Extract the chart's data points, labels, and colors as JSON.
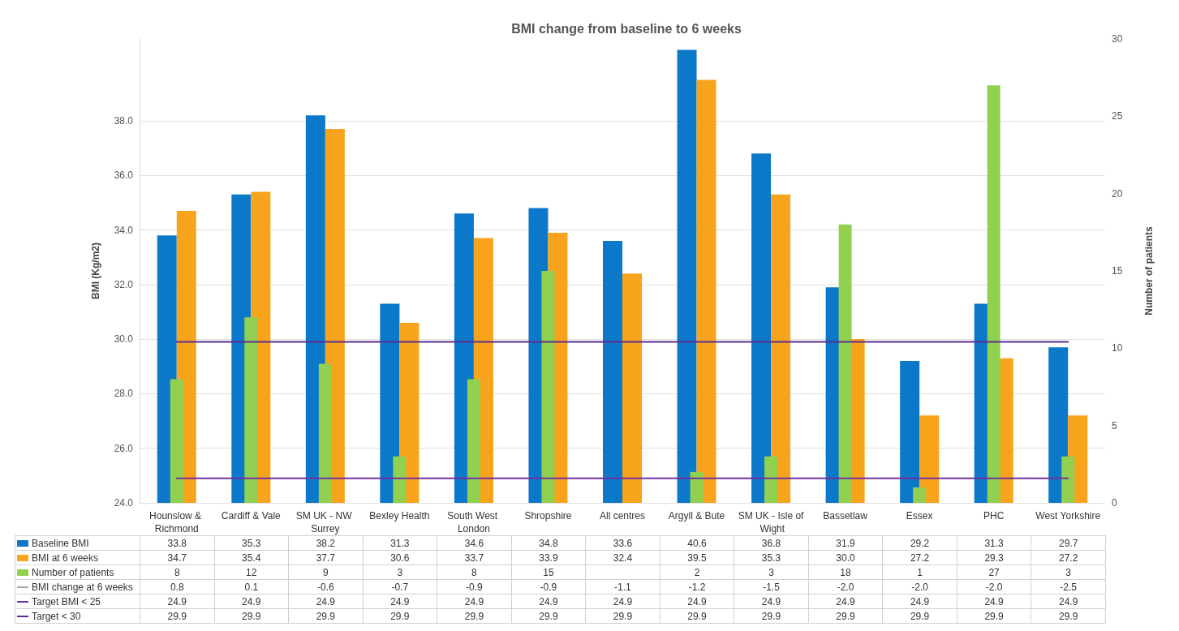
{
  "chart_data": {
    "type": "bar",
    "title": "BMI change from baseline to 6 weeks",
    "ylabel": "BMI (Kg/m2)",
    "y2label": "Number of patients",
    "categories": [
      "Hounslow & Richmond",
      "Cardiff & Vale",
      "SM UK - NW Surrey",
      "Bexley Health",
      "South West London",
      "Shropshire",
      "All centres",
      "Argyll & Bute",
      "SM UK - Isle of Wight",
      "Bassetlaw",
      "Essex",
      "PHC",
      "West Yorkshire"
    ],
    "series": [
      {
        "name": "Baseline BMI",
        "color": "#0b78c9",
        "values": [
          33.8,
          35.3,
          38.2,
          31.3,
          34.6,
          34.8,
          33.6,
          40.6,
          36.8,
          31.9,
          29.2,
          31.3,
          29.7
        ],
        "value_labels": [
          "33.8",
          "35.3",
          "38.2",
          "31.3",
          "34.6",
          "34.8",
          "33.6",
          "40.6",
          "36.8",
          "31.9",
          "29.2",
          "31.3",
          "29.7"
        ]
      },
      {
        "name": "BMI at 6 weeks",
        "color": "#f8a31c",
        "values": [
          34.7,
          35.4,
          37.7,
          30.6,
          33.7,
          33.9,
          32.4,
          39.5,
          35.3,
          30.0,
          27.2,
          29.3,
          27.2
        ],
        "value_labels": [
          "34.7",
          "35.4",
          "37.7",
          "30.6",
          "33.7",
          "33.9",
          "32.4",
          "39.5",
          "35.3",
          "30.0",
          "27.2",
          "29.3",
          "27.2"
        ]
      },
      {
        "name": "Number of patients",
        "color": "#92d050",
        "axis": "y2",
        "values": [
          8,
          12,
          9,
          3,
          8,
          15,
          null,
          2,
          3,
          18,
          1,
          27,
          3
        ],
        "value_labels": [
          "8",
          "12",
          "9",
          "3",
          "8",
          "15",
          null,
          "2",
          "3",
          "18",
          "1",
          "27",
          "3"
        ]
      },
      {
        "name": "BMI change at 6 weeks",
        "type": "line",
        "color": "#a5a5a5",
        "values": [
          null,
          null,
          null,
          null,
          null,
          null,
          null,
          null,
          null,
          null,
          null,
          null,
          null
        ],
        "value_labels": [
          "0.8",
          "0.1",
          "-0.6",
          "-0.7",
          "-0.9",
          "-0.9",
          "-1.1",
          "-1.2",
          "-1.5",
          "-2.0",
          "-2.0",
          "-2.0",
          "-2.5"
        ]
      },
      {
        "name": "Target BMI < 25",
        "type": "line",
        "color": "#7030a0",
        "values": [
          24.9,
          24.9,
          24.9,
          24.9,
          24.9,
          24.9,
          24.9,
          24.9,
          24.9,
          24.9,
          24.9,
          24.9,
          24.9
        ],
        "value_labels": [
          "24.9",
          "24.9",
          "24.9",
          "24.9",
          "24.9",
          "24.9",
          "24.9",
          "24.9",
          "24.9",
          "24.9",
          "24.9",
          "24.9",
          "24.9"
        ]
      },
      {
        "name": "Target < 30",
        "type": "line",
        "color": "#5c2d91",
        "values": [
          29.9,
          29.9,
          29.9,
          29.9,
          29.9,
          29.9,
          29.9,
          29.9,
          29.9,
          29.9,
          29.9,
          29.9,
          29.9
        ],
        "value_labels": [
          "29.9",
          "29.9",
          "29.9",
          "29.9",
          "29.9",
          "29.9",
          "29.9",
          "29.9",
          "29.9",
          "29.9",
          "29.9",
          "29.9",
          "29.9"
        ]
      }
    ],
    "ylim": [
      24,
      41
    ],
    "yticks": [
      {
        "value": 24,
        "label": "24.0"
      },
      {
        "value": 26,
        "label": "26.0"
      },
      {
        "value": 28,
        "label": "28.0"
      },
      {
        "value": 30,
        "label": "30.0"
      },
      {
        "value": 32,
        "label": "32.0"
      },
      {
        "value": 34,
        "label": "34.0"
      },
      {
        "value": 36,
        "label": "36.0"
      },
      {
        "value": 38,
        "label": "38.0"
      }
    ],
    "y2lim": [
      0,
      30
    ],
    "y2ticks": [
      0,
      5,
      10,
      15,
      20,
      25,
      30
    ],
    "grid": "y",
    "legend": "bottom",
    "marker": "none"
  }
}
